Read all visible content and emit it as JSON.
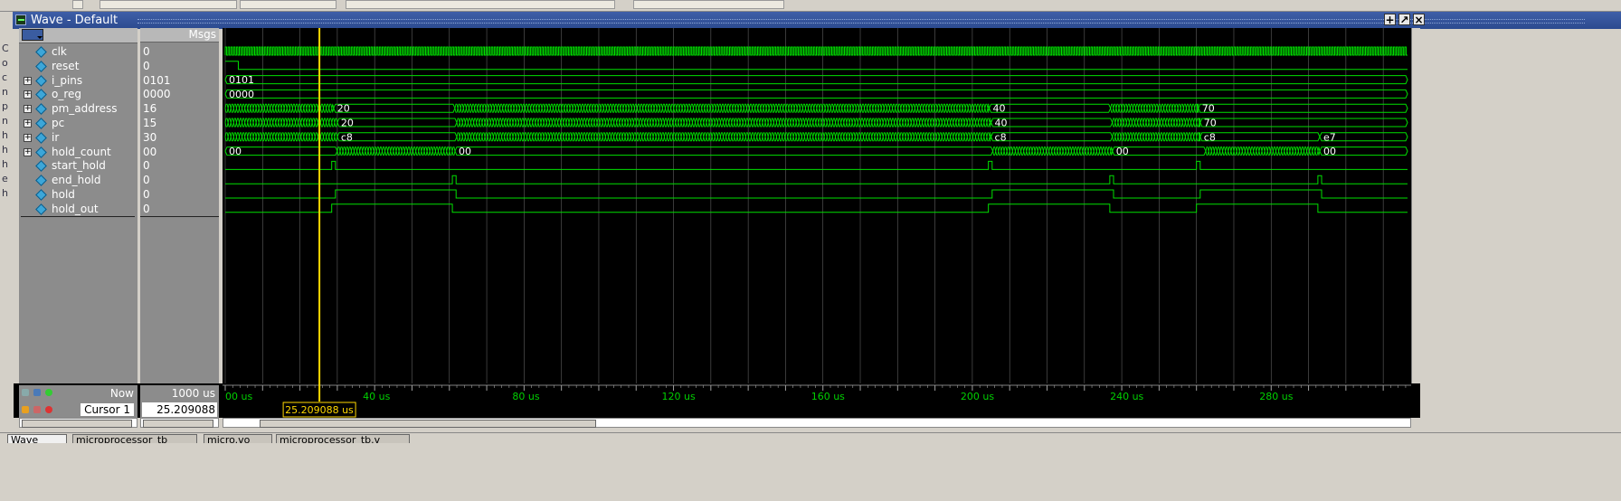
{
  "window": {
    "title": "Wave - Default"
  },
  "name_header": {
    "filter_label": ""
  },
  "value_header": {
    "label": "Msgs"
  },
  "signals": [
    {
      "name": "clk",
      "value": "0",
      "expandable": false
    },
    {
      "name": "reset",
      "value": "0",
      "expandable": false
    },
    {
      "name": "i_pins",
      "value": "0101",
      "expandable": true
    },
    {
      "name": "o_reg",
      "value": "0000",
      "expandable": true
    },
    {
      "name": "pm_address",
      "value": "16",
      "expandable": true
    },
    {
      "name": "pc",
      "value": "15",
      "expandable": true
    },
    {
      "name": "ir",
      "value": "30",
      "expandable": true
    },
    {
      "name": "hold_count",
      "value": "00",
      "expandable": true
    },
    {
      "name": "start_hold",
      "value": "0",
      "expandable": false
    },
    {
      "name": "end_hold",
      "value": "0",
      "expandable": false
    },
    {
      "name": "hold",
      "value": "0",
      "expandable": false
    },
    {
      "name": "hold_out",
      "value": "0",
      "expandable": false
    }
  ],
  "status": {
    "now_label": "Now",
    "now_value": "1000 us",
    "cursor_label": "Cursor 1",
    "cursor_value": "25.209088 us"
  },
  "cursor": {
    "time_us": 25.209088,
    "label": "25.209088 us"
  },
  "timeline": {
    "start_us": 0,
    "end_us": 316.5,
    "unit": "us",
    "major_ticks_us": [
      0,
      40,
      80,
      120,
      160,
      200,
      240,
      280
    ],
    "tick_labels": [
      "00 us",
      "40 us",
      "80 us",
      "120 us",
      "160 us",
      "200 us",
      "240 us",
      "280 us"
    ]
  },
  "waves": {
    "i_pins": [
      {
        "t": 0,
        "v": "0101"
      }
    ],
    "o_reg": [
      {
        "t": 0,
        "v": "0000"
      }
    ],
    "pm_address": [
      {
        "t": 0,
        "v": ""
      },
      {
        "t": 29.0,
        "v": "20"
      },
      {
        "t": 61.5,
        "v": ""
      },
      {
        "t": 204.5,
        "v": "40"
      },
      {
        "t": 237.0,
        "v": ""
      },
      {
        "t": 260.5,
        "v": "70"
      }
    ],
    "pc": [
      {
        "t": 0,
        "v": ""
      },
      {
        "t": 30.0,
        "v": "20"
      },
      {
        "t": 62.0,
        "v": ""
      },
      {
        "t": 205.0,
        "v": "40"
      },
      {
        "t": 237.5,
        "v": ""
      },
      {
        "t": 261.0,
        "v": "70"
      }
    ],
    "ir": [
      {
        "t": 0,
        "v": ""
      },
      {
        "t": 30.0,
        "v": "c8"
      },
      {
        "t": 62.0,
        "v": ""
      },
      {
        "t": 205.0,
        "v": "c8"
      },
      {
        "t": 237.5,
        "v": ""
      },
      {
        "t": 261.0,
        "v": "c8"
      },
      {
        "t": 293.0,
        "v": "e7"
      }
    ],
    "hold_count": [
      {
        "t": 0,
        "v": "00"
      },
      {
        "t": 30.0,
        "v": ""
      },
      {
        "t": 61.5,
        "v": "00"
      },
      {
        "t": 205.5,
        "v": ""
      },
      {
        "t": 237.5,
        "v": "00"
      },
      {
        "t": 262.5,
        "v": ""
      },
      {
        "t": 293.0,
        "v": "00"
      }
    ],
    "reset": {
      "high_until_us": 3.5
    },
    "start_hold": {
      "pulses_us": [
        [
          28.5,
          29.5
        ],
        [
          204.3,
          205.3
        ],
        [
          260.0,
          261.0
        ]
      ]
    },
    "end_hold": {
      "pulses_us": [
        [
          60.8,
          61.8
        ],
        [
          236.8,
          237.8
        ],
        [
          292.5,
          293.5
        ]
      ]
    },
    "hold": {
      "high_us": [
        [
          29.5,
          61.8
        ],
        [
          205.3,
          237.8
        ],
        [
          261.0,
          293.5
        ]
      ]
    },
    "hold_out": {
      "high_us": [
        [
          28.5,
          60.8
        ],
        [
          204.3,
          236.8
        ],
        [
          260.0,
          292.5
        ]
      ]
    }
  },
  "bottom_tabs": [
    "Wave",
    "microprocessor_tb",
    "micro.vo",
    "microprocessor_tb.v"
  ],
  "colors": {
    "wave": "#00e000",
    "cursor": "#ffd800",
    "grid": "#606060",
    "titlebar": "#2f4f96"
  }
}
